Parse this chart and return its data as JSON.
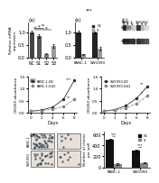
{
  "panel_a": {
    "title": "(a)",
    "categories": [
      "NC",
      "S1",
      "S2",
      "S3"
    ],
    "values": [
      1.0,
      0.85,
      0.15,
      0.45
    ],
    "errors": [
      0.05,
      0.08,
      0.03,
      0.06
    ],
    "bar_colors": [
      "#555555",
      "#555555",
      "#888888",
      "#888888"
    ],
    "ylabel": "Relative mRNA\nexpression",
    "ylim": [
      0,
      1.4
    ],
    "yticks": [
      0,
      0.5,
      1.0
    ]
  },
  "panel_b": {
    "title": "(b)",
    "categories": [
      "PANC-1",
      "SW1990"
    ],
    "nc_values": [
      1.0,
      1.0
    ],
    "si_values": [
      0.12,
      0.35
    ],
    "nc_errors": [
      0.05,
      0.04
    ],
    "si_errors": [
      0.03,
      0.06
    ],
    "nc_color": "#222222",
    "si_color": "#999999",
    "ylabel": "Relative mRNA\nexpression",
    "ylim": [
      0,
      1.4
    ],
    "yticks": [
      0,
      0.5,
      1.0
    ]
  },
  "panel_d_left": {
    "title": "",
    "legend_label1": "PANC-1-NC",
    "legend_label2": "PANC-1-S#2",
    "days": [
      0,
      2,
      4,
      6,
      8
    ],
    "values1": [
      0.05,
      0.1,
      0.22,
      0.55,
      1.35
    ],
    "values2": [
      0.05,
      0.08,
      0.13,
      0.25,
      0.55
    ],
    "color1": "#333333",
    "color2": "#888888",
    "xlabel": "Days",
    "ylabel": "OD450 absorbance",
    "ylim": [
      0,
      1.5
    ],
    "yticks": [
      0,
      0.5,
      1.0,
      1.5
    ]
  },
  "panel_d_right": {
    "legend_label1": "SW1990-NC",
    "legend_label2": "SW1990-S#2",
    "days": [
      0,
      2,
      4,
      6,
      8
    ],
    "values1": [
      0.05,
      0.12,
      0.28,
      0.6,
      1.1
    ],
    "values2": [
      0.05,
      0.09,
      0.18,
      0.38,
      0.7
    ],
    "color1": "#333333",
    "color2": "#888888",
    "xlabel": "Days",
    "ylabel": "OD450 absorbance",
    "ylim": [
      0,
      1.5
    ],
    "yticks": [
      0,
      0.5,
      1.0,
      1.5
    ]
  },
  "panel_e_bar": {
    "groups": [
      "PANC-1",
      "SW1990"
    ],
    "nc_values": [
      500,
      300
    ],
    "si_values": [
      60,
      80
    ],
    "nc_errors": [
      30,
      25
    ],
    "si_errors": [
      10,
      12
    ],
    "nc_color": "#111111",
    "si_color": "#888888",
    "ylabel": "Number of clones\nper well",
    "ylim": [
      0,
      650
    ],
    "yticks": [
      0,
      200,
      400,
      600
    ]
  },
  "wb_rows": [
    "SDR16C5",
    "GAPDH"
  ],
  "wb_cols_panc": [
    "NC",
    "S1",
    "S2"
  ],
  "wb_cols_sw": [
    "NC",
    "S1",
    "S2"
  ],
  "background": "#ffffff"
}
